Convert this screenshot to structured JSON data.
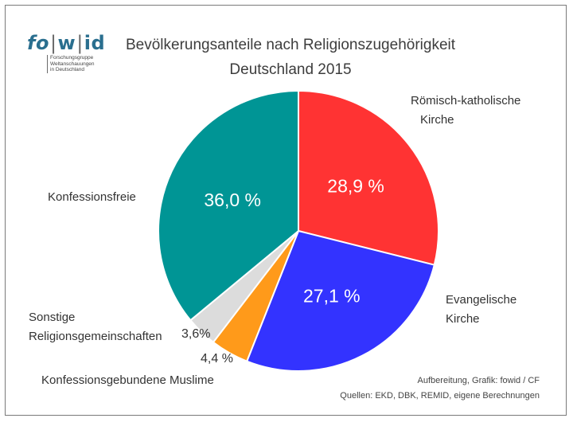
{
  "logo": {
    "word_fo": "fo",
    "word_w": "w",
    "word_id": "id",
    "sub_line1": "Forschungsgruppe",
    "sub_line2": "Weltanschauungen",
    "sub_line3": "in Deutschland"
  },
  "chart_data": {
    "type": "pie",
    "title": "Bevölkerungsanteile nach Religionszugehörigkeit",
    "subtitle": "Deutschland 2015",
    "slices": [
      {
        "name": "Römisch-katholische Kirche",
        "label_line1": "Römisch-katholische",
        "label_line2": "Kirche",
        "value": 28.9,
        "value_label": "28,9 %",
        "color": "#ff3333"
      },
      {
        "name": "Evangelische Kirche",
        "label_line1": "Evangelische",
        "label_line2": "Kirche",
        "value": 27.1,
        "value_label": "27,1 %",
        "color": "#3333ff"
      },
      {
        "name": "Konfessionsgebundene Muslime",
        "label_line1": "Konfessionsgebundene Muslime",
        "label_line2": "",
        "value": 4.4,
        "value_label": "4,4 %",
        "color": "#ff9a1a"
      },
      {
        "name": "Sonstige Religionsgemeinschaften",
        "label_line1": "Sonstige",
        "label_line2": "Religionsgemeinschaften",
        "value": 3.6,
        "value_label": "3,6%",
        "color": "#dcdcdc"
      },
      {
        "name": "Konfessionsfreie",
        "label_line1": "Konfessionsfreie",
        "label_line2": "",
        "value": 36.0,
        "value_label": "36,0 %",
        "color": "#009595"
      }
    ]
  },
  "credits": {
    "line1": "Aufbereitung, Grafik: fowid / CF",
    "line2": "Quellen: EKD, DBK, REMID,  eigene Berechnungen"
  }
}
